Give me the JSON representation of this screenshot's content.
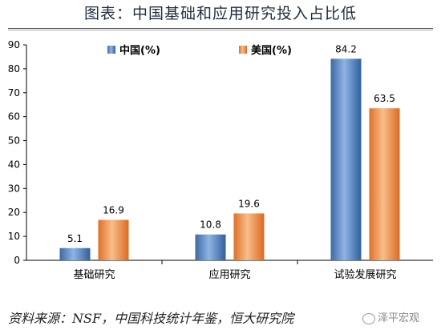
{
  "title": "图表：中国基础和应用研究投入占比低",
  "source": "资料来源：NSF，中国科技统计年鉴，恒大研究院",
  "watermark": "泽平宏观",
  "colors": {
    "china": "#4a7ebb",
    "usa": "#f0883e"
  },
  "chart_data": {
    "type": "bar",
    "categories": [
      "基础研究",
      "应用研究",
      "试验发展研究"
    ],
    "series": [
      {
        "name": "中国(%)",
        "values": [
          5.1,
          10.8,
          84.2
        ]
      },
      {
        "name": "美国(%)",
        "values": [
          16.9,
          19.6,
          63.5
        ]
      }
    ],
    "ylim": [
      0,
      90
    ],
    "yticks": [
      0,
      10,
      20,
      30,
      40,
      50,
      60,
      70,
      80,
      90
    ],
    "legend_position": "top-center",
    "grid": false
  }
}
